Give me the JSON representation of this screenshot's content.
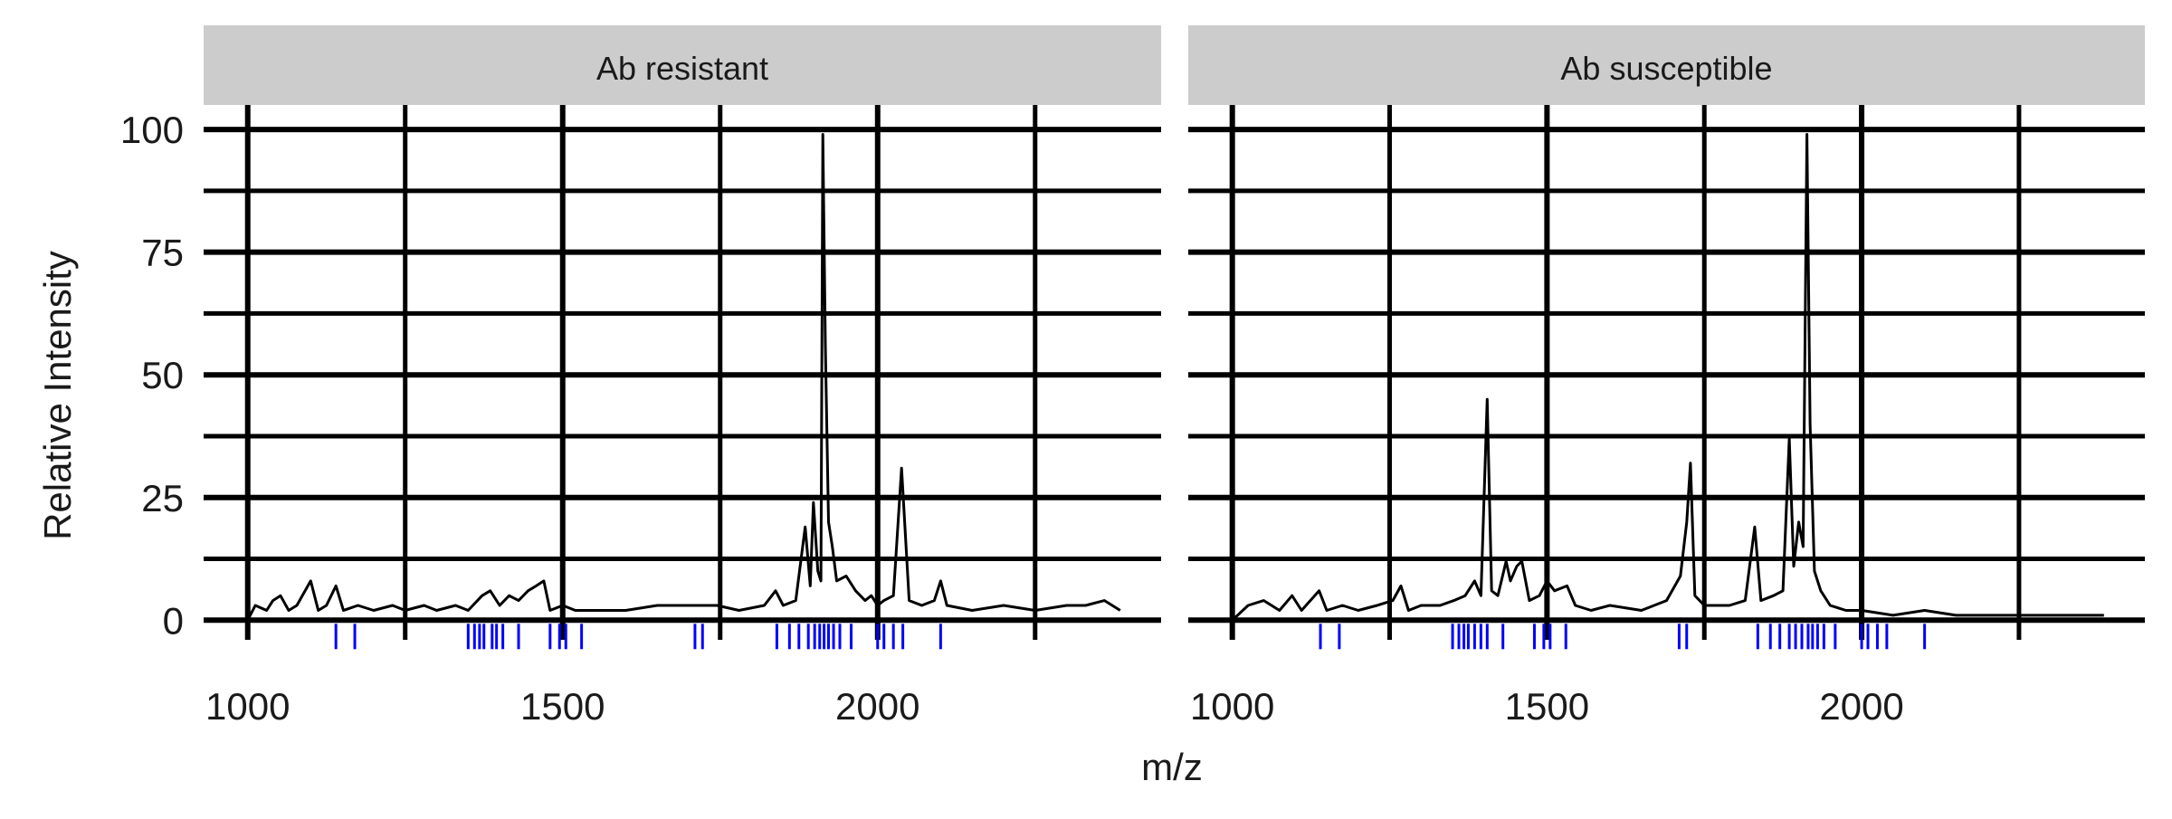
{
  "chart_data": {
    "type": "line",
    "layout": "faceted",
    "x_label": "m/z",
    "y_label": "Relative Intensity",
    "x_ticks": [
      1000,
      1500,
      2000
    ],
    "y_ticks": [
      0,
      25,
      50,
      75,
      100
    ],
    "x_minor_gridlines": [
      1250,
      1750,
      2250
    ],
    "y_minor_gridlines": [
      12.5,
      37.5,
      62.5,
      87.5
    ],
    "xlim": [
      930,
      2450
    ],
    "ylim": [
      -4,
      105
    ],
    "grid": true,
    "colors": {
      "spectrum": "#000000",
      "peak_marker": "#0000ff",
      "strip": "#cccccc",
      "grid": "#000000"
    },
    "panels": [
      {
        "title": "Ab resistant",
        "spectrum": [
          [
            1000,
            0
          ],
          [
            1012,
            3
          ],
          [
            1030,
            2
          ],
          [
            1040,
            4
          ],
          [
            1052,
            5
          ],
          [
            1065,
            2
          ],
          [
            1078,
            3
          ],
          [
            1100,
            8
          ],
          [
            1112,
            2
          ],
          [
            1125,
            3
          ],
          [
            1140,
            7
          ],
          [
            1152,
            2
          ],
          [
            1175,
            3
          ],
          [
            1200,
            2
          ],
          [
            1230,
            3
          ],
          [
            1250,
            2
          ],
          [
            1280,
            3
          ],
          [
            1300,
            2
          ],
          [
            1330,
            3
          ],
          [
            1350,
            2
          ],
          [
            1372,
            5
          ],
          [
            1385,
            6
          ],
          [
            1400,
            3
          ],
          [
            1415,
            5
          ],
          [
            1430,
            4
          ],
          [
            1445,
            6
          ],
          [
            1458,
            7
          ],
          [
            1470,
            8
          ],
          [
            1480,
            2
          ],
          [
            1500,
            3
          ],
          [
            1520,
            2
          ],
          [
            1550,
            2
          ],
          [
            1600,
            2
          ],
          [
            1650,
            3
          ],
          [
            1700,
            3
          ],
          [
            1722,
            3
          ],
          [
            1745,
            3
          ],
          [
            1780,
            2
          ],
          [
            1820,
            3
          ],
          [
            1838,
            6
          ],
          [
            1850,
            3
          ],
          [
            1870,
            4
          ],
          [
            1885,
            19
          ],
          [
            1893,
            7
          ],
          [
            1898,
            24
          ],
          [
            1905,
            10
          ],
          [
            1910,
            8
          ],
          [
            1913,
            99
          ],
          [
            1917,
            56
          ],
          [
            1922,
            20
          ],
          [
            1928,
            15
          ],
          [
            1935,
            8
          ],
          [
            1950,
            9
          ],
          [
            1965,
            6
          ],
          [
            1980,
            4
          ],
          [
            1990,
            5
          ],
          [
            2000,
            3
          ],
          [
            2010,
            4
          ],
          [
            2025,
            5
          ],
          [
            2038,
            31
          ],
          [
            2050,
            4
          ],
          [
            2070,
            3
          ],
          [
            2090,
            4
          ],
          [
            2100,
            8
          ],
          [
            2110,
            3
          ],
          [
            2150,
            2
          ],
          [
            2200,
            3
          ],
          [
            2250,
            2
          ],
          [
            2300,
            3
          ],
          [
            2330,
            3
          ],
          [
            2360,
            4
          ],
          [
            2385,
            2
          ]
        ],
        "peak_markers": [
          1140,
          1170,
          1350,
          1360,
          1368,
          1375,
          1388,
          1395,
          1405,
          1430,
          1480,
          1495,
          1505,
          1530,
          1710,
          1722,
          1840,
          1860,
          1875,
          1890,
          1900,
          1908,
          1915,
          1922,
          1930,
          1940,
          1958,
          2000,
          2010,
          2025,
          2040,
          2100
        ]
      },
      {
        "title": "Ab susceptible",
        "spectrum": [
          [
            1000,
            0
          ],
          [
            1025,
            3
          ],
          [
            1050,
            4
          ],
          [
            1075,
            2
          ],
          [
            1095,
            5
          ],
          [
            1110,
            2
          ],
          [
            1138,
            6
          ],
          [
            1150,
            2
          ],
          [
            1175,
            3
          ],
          [
            1200,
            2
          ],
          [
            1230,
            3
          ],
          [
            1255,
            4
          ],
          [
            1268,
            7
          ],
          [
            1280,
            2
          ],
          [
            1300,
            3
          ],
          [
            1330,
            3
          ],
          [
            1352,
            4
          ],
          [
            1370,
            5
          ],
          [
            1385,
            8
          ],
          [
            1395,
            5
          ],
          [
            1405,
            45
          ],
          [
            1412,
            6
          ],
          [
            1422,
            5
          ],
          [
            1435,
            12
          ],
          [
            1442,
            8
          ],
          [
            1452,
            11
          ],
          [
            1460,
            12
          ],
          [
            1472,
            4
          ],
          [
            1488,
            5
          ],
          [
            1500,
            8
          ],
          [
            1512,
            6
          ],
          [
            1532,
            7
          ],
          [
            1545,
            3
          ],
          [
            1570,
            2
          ],
          [
            1600,
            3
          ],
          [
            1650,
            2
          ],
          [
            1690,
            4
          ],
          [
            1712,
            9
          ],
          [
            1722,
            20
          ],
          [
            1728,
            32
          ],
          [
            1735,
            5
          ],
          [
            1750,
            3
          ],
          [
            1790,
            3
          ],
          [
            1815,
            4
          ],
          [
            1830,
            19
          ],
          [
            1840,
            4
          ],
          [
            1860,
            5
          ],
          [
            1875,
            6
          ],
          [
            1885,
            37
          ],
          [
            1892,
            11
          ],
          [
            1900,
            20
          ],
          [
            1907,
            15
          ],
          [
            1913,
            99
          ],
          [
            1918,
            40
          ],
          [
            1925,
            10
          ],
          [
            1935,
            6
          ],
          [
            1950,
            3
          ],
          [
            1975,
            2
          ],
          [
            2000,
            2
          ],
          [
            2050,
            1
          ],
          [
            2100,
            2
          ],
          [
            2150,
            1
          ],
          [
            2200,
            1
          ],
          [
            2250,
            1
          ],
          [
            2300,
            1
          ],
          [
            2350,
            1
          ],
          [
            2385,
            1
          ]
        ],
        "peak_markers": [
          1140,
          1170,
          1350,
          1360,
          1368,
          1375,
          1385,
          1395,
          1405,
          1430,
          1480,
          1495,
          1505,
          1530,
          1710,
          1722,
          1835,
          1855,
          1870,
          1885,
          1895,
          1905,
          1915,
          1922,
          1930,
          1940,
          1958,
          2000,
          2010,
          2025,
          2040,
          2100
        ]
      }
    ]
  }
}
